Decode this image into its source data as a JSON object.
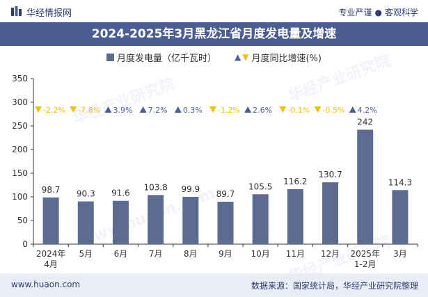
{
  "header": {
    "brand": "华经情报网",
    "tagline_left": "专业严谨",
    "tagline_right": "客观科学",
    "title": "2024-2025年3月黑龙江省月度发电量及增速"
  },
  "legend": {
    "bar_label": "月度发电量（亿千瓦时）",
    "line_label": "月度同比增速(%)"
  },
  "watermarks": [
    "华经产业研究院",
    "华经产业研究院",
    "华经产业研究院",
    "www.huaon.com"
  ],
  "footer": {
    "url": "www.huaon.com",
    "source": "数据来源：国家统计局，华经产业研究院整理"
  },
  "colors": {
    "bar": "#5b6b92",
    "title_bg": "#4a5e91",
    "up": "#4a5e91",
    "down": "#f2c200"
  },
  "chart_data": {
    "type": "bar",
    "categories": [
      "2024年\n4月",
      "5月",
      "6月",
      "7月",
      "8月",
      "9月",
      "10月",
      "11月",
      "12月",
      "2025年\n1-2月",
      "3月"
    ],
    "series": [
      {
        "name": "月度发电量（亿千瓦时）",
        "values": [
          98.7,
          90.3,
          91.6,
          103.8,
          99.9,
          89.7,
          105.5,
          116.2,
          130.7,
          242,
          114.3
        ]
      },
      {
        "name": "月度同比增速(%)",
        "values": [
          -2.2,
          -7.8,
          3.9,
          7.2,
          0.3,
          -1.2,
          2.6,
          -0.1,
          -0.5,
          4.2,
          null
        ]
      }
    ],
    "value_labels": [
      "98.7",
      "90.3",
      "91.6",
      "103.8",
      "99.9",
      "89.7",
      "105.5",
      "116.2",
      "130.7",
      "242",
      "114.3"
    ],
    "growth_labels": [
      "-2.2%",
      "-7.8%",
      "3.9%",
      "7.2%",
      "0.3%",
      "-1.2%",
      "2.6%",
      "-0.1%",
      "-0.5%",
      "4.2%",
      ""
    ],
    "ylim": [
      0,
      350
    ],
    "yticks": [
      0,
      50,
      100,
      150,
      200,
      250,
      300,
      350
    ],
    "grid": false,
    "legend_position": "top-center"
  }
}
